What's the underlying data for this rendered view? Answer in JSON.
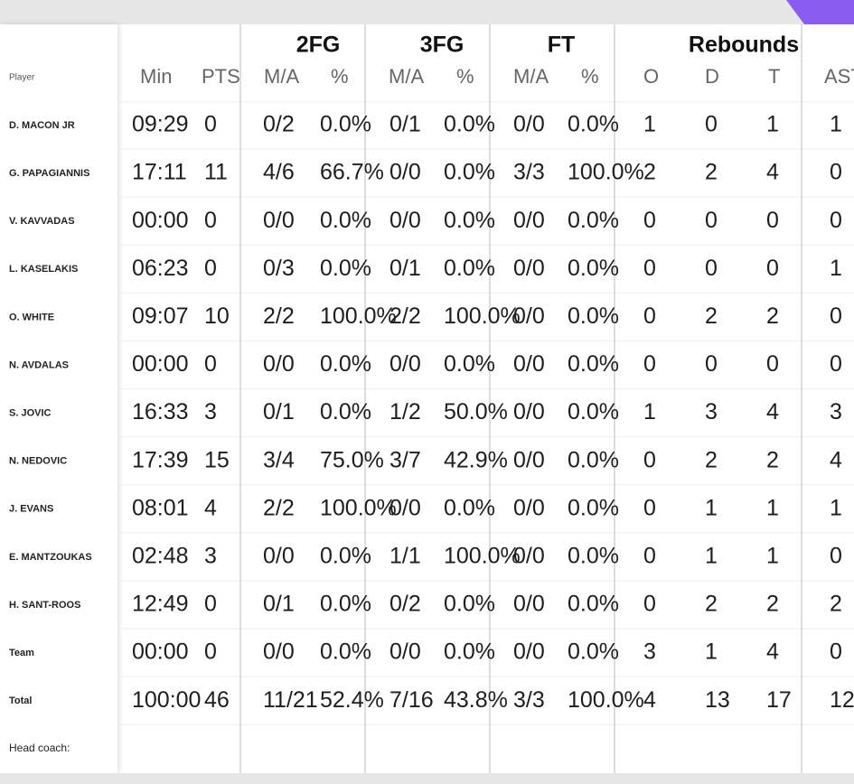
{
  "header": {
    "player": "Player",
    "groups": [
      "2FG",
      "3FG",
      "FT",
      "Rebounds"
    ],
    "columns": [
      "Min",
      "PTS",
      "M/A",
      "%",
      "M/A",
      "%",
      "M/A",
      "%",
      "O",
      "D",
      "T",
      "AST"
    ]
  },
  "rows": [
    {
      "name": "D. MACON JR",
      "cells": [
        "09:29",
        "0",
        "0/2",
        "0.0%",
        "0/1",
        "0.0%",
        "0/0",
        "0.0%",
        "1",
        "0",
        "1",
        "1"
      ]
    },
    {
      "name": "G. PAPAGIANNIS",
      "cells": [
        "17:11",
        "11",
        "4/6",
        "66.7%",
        "0/0",
        "0.0%",
        "3/3",
        "100.0%",
        "2",
        "2",
        "4",
        "0"
      ]
    },
    {
      "name": "V. KAVVADAS",
      "cells": [
        "00:00",
        "0",
        "0/0",
        "0.0%",
        "0/0",
        "0.0%",
        "0/0",
        "0.0%",
        "0",
        "0",
        "0",
        "0"
      ]
    },
    {
      "name": "L. KASELAKIS",
      "cells": [
        "06:23",
        "0",
        "0/3",
        "0.0%",
        "0/1",
        "0.0%",
        "0/0",
        "0.0%",
        "0",
        "0",
        "0",
        "1"
      ]
    },
    {
      "name": "O. WHITE",
      "cells": [
        "09:07",
        "10",
        "2/2",
        "100.0%",
        "2/2",
        "100.0%",
        "0/0",
        "0.0%",
        "0",
        "2",
        "2",
        "0"
      ]
    },
    {
      "name": "N. AVDALAS",
      "cells": [
        "00:00",
        "0",
        "0/0",
        "0.0%",
        "0/0",
        "0.0%",
        "0/0",
        "0.0%",
        "0",
        "0",
        "0",
        "0"
      ]
    },
    {
      "name": "S. JOVIC",
      "cells": [
        "16:33",
        "3",
        "0/1",
        "0.0%",
        "1/2",
        "50.0%",
        "0/0",
        "0.0%",
        "1",
        "3",
        "4",
        "3"
      ]
    },
    {
      "name": "N. NEDOVIC",
      "cells": [
        "17:39",
        "15",
        "3/4",
        "75.0%",
        "3/7",
        "42.9%",
        "0/0",
        "0.0%",
        "0",
        "2",
        "2",
        "4"
      ]
    },
    {
      "name": "J. EVANS",
      "cells": [
        "08:01",
        "4",
        "2/2",
        "100.0%",
        "0/0",
        "0.0%",
        "0/0",
        "0.0%",
        "0",
        "1",
        "1",
        "1"
      ]
    },
    {
      "name": "E. MANTZOUKAS",
      "cells": [
        "02:48",
        "3",
        "0/0",
        "0.0%",
        "1/1",
        "100.0%",
        "0/0",
        "0.0%",
        "0",
        "1",
        "1",
        "0"
      ]
    },
    {
      "name": "H. SANT-ROOS",
      "cells": [
        "12:49",
        "0",
        "0/1",
        "0.0%",
        "0/2",
        "0.0%",
        "0/0",
        "0.0%",
        "0",
        "2",
        "2",
        "2"
      ]
    },
    {
      "name": "Team",
      "cells": [
        "00:00",
        "0",
        "0/0",
        "0.0%",
        "0/0",
        "0.0%",
        "0/0",
        "0.0%",
        "3",
        "1",
        "4",
        "0"
      ]
    },
    {
      "name": "Total",
      "cells": [
        "100:00",
        "46",
        "11/21",
        "52.4%",
        "7/16",
        "43.8%",
        "3/3",
        "100.0%",
        "4",
        "13",
        "17",
        "12"
      ]
    }
  ],
  "footer": {
    "head_coach": "Head coach:"
  }
}
